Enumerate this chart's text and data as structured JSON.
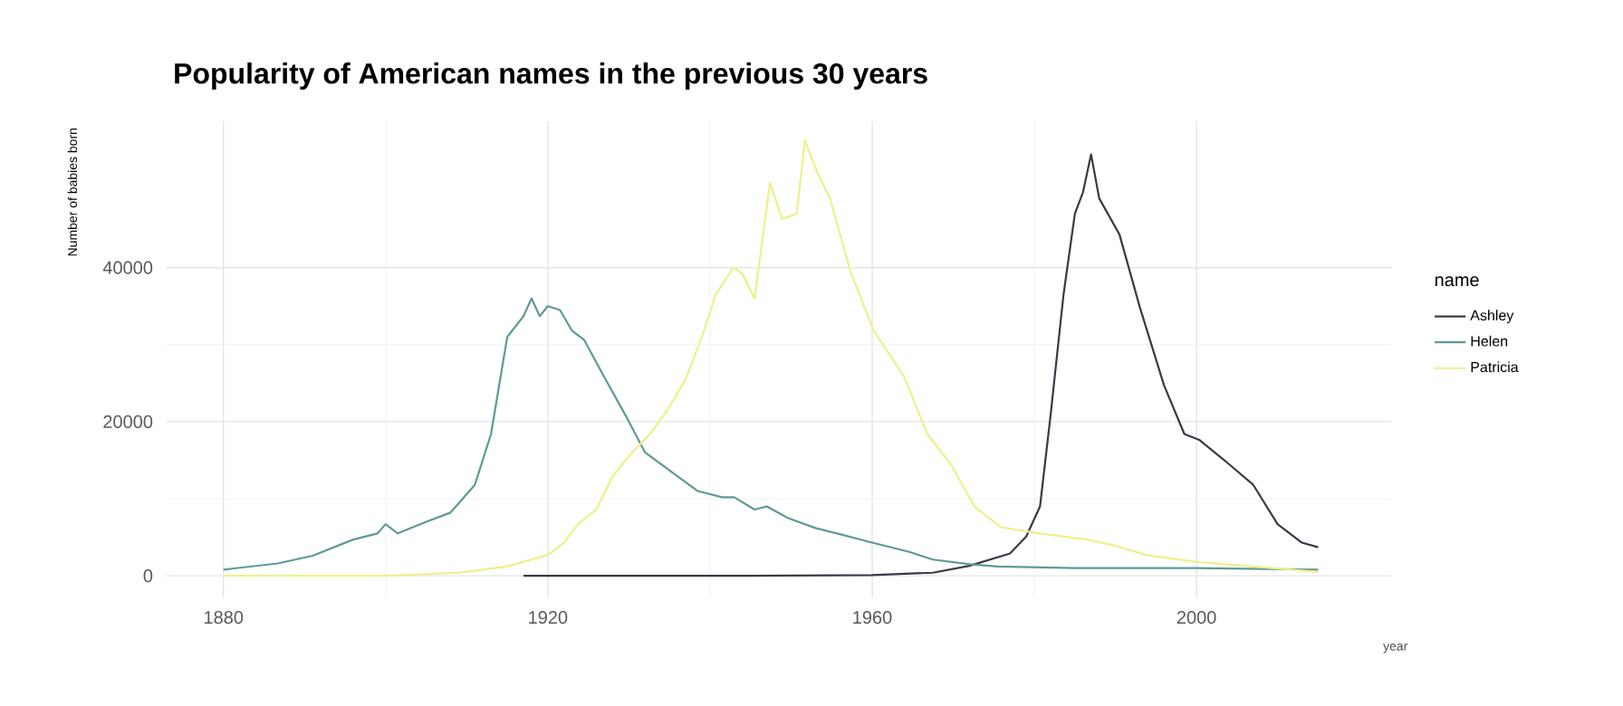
{
  "chart_data": {
    "type": "line",
    "title": "Popularity of American names in the previous 30 years",
    "xlabel": "year",
    "ylabel": "Number of babies born",
    "legend_title": "name",
    "legend": "right",
    "grid": true,
    "xlim": [
      1873,
      2024
    ],
    "ylim": [
      -2800,
      59000
    ],
    "xticks": [
      1880,
      1920,
      1960,
      2000
    ],
    "yticks": [
      0,
      20000,
      40000
    ],
    "series": [
      {
        "name": "Ashley",
        "color": "#3a3a46",
        "x": [
          1917,
          1930,
          1945,
          1960,
          1967.5,
          1972,
          1977,
          1979,
          1980.7,
          1982,
          1983.6,
          1985,
          1986,
          1987,
          1988,
          1990.5,
          1993,
          1996,
          1998.5,
          2000.4,
          2004,
          2007,
          2010,
          2013,
          2015
        ],
        "values": [
          0,
          0,
          0,
          100,
          400,
          1300,
          2900,
          5100,
          9000,
          20800,
          36500,
          47000,
          49800,
          54700,
          49000,
          44300,
          34900,
          24700,
          18400,
          17600,
          14500,
          11800,
          6700,
          4300,
          3700
        ]
      },
      {
        "name": "Helen",
        "color": "#5f9a96",
        "x": [
          1880,
          1886.7,
          1891,
          1896,
          1899,
          1900,
          1901.5,
          1905,
          1908,
          1911,
          1913,
          1915,
          1917,
          1918,
          1919,
          1920,
          1921.5,
          1923,
          1924.5,
          1926.7,
          1929.6,
          1932,
          1935,
          1938.5,
          1941.5,
          1943,
          1945.5,
          1947,
          1949.6,
          1953,
          1956,
          1960,
          1964.6,
          1967.5,
          1972,
          1975.5,
          1985,
          2000,
          2015
        ],
        "values": [
          800,
          1600,
          2600,
          4700,
          5500,
          6700,
          5500,
          7000,
          8200,
          11800,
          18400,
          31000,
          33700,
          36000,
          33700,
          35000,
          34500,
          31800,
          30600,
          26300,
          20800,
          16000,
          13700,
          11000,
          10200,
          10200,
          8600,
          9000,
          7500,
          6200,
          5400,
          4300,
          3100,
          2100,
          1500,
          1200,
          1000,
          1000,
          800
        ]
      },
      {
        "name": "Patricia",
        "color": "#eef08a",
        "x": [
          1880,
          1900,
          1909,
          1915,
          1920,
          1922,
          1923.7,
          1926,
          1928,
          1930.4,
          1932.6,
          1934.8,
          1937,
          1939,
          1940.7,
          1942.9,
          1944,
          1945.5,
          1947.4,
          1948.9,
          1950.7,
          1951.7,
          1953.3,
          1954.8,
          1957.3,
          1960.2,
          1963.9,
          1966.8,
          1969.7,
          1972.6,
          1975.9,
          1980.7,
          1986.5,
          1990,
          1993.8,
          2000,
          2007,
          2015
        ],
        "values": [
          0,
          0,
          400,
          1200,
          2700,
          4300,
          6700,
          8600,
          12900,
          16000,
          18400,
          21600,
          25500,
          31000,
          36500,
          40000,
          39200,
          36000,
          51000,
          46300,
          47000,
          56500,
          52200,
          49000,
          39600,
          31800,
          25900,
          18400,
          14500,
          9000,
          6300,
          5500,
          4700,
          3900,
          2700,
          1800,
          1200,
          500
        ]
      }
    ]
  }
}
